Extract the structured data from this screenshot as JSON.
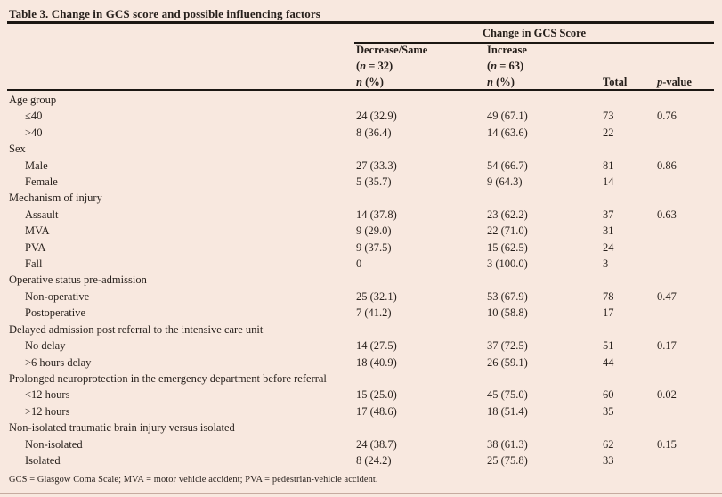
{
  "page": {
    "background_color": "#f8e8df",
    "rule_color": "#1c1713",
    "text_color": "#261f1b",
    "bottom_edge_color": "#c6aba0"
  },
  "table": {
    "title": "Table 3. Change in GCS score and possible influencing factors",
    "header": {
      "spanner": "Change in GCS Score",
      "col_decrease": [
        "Decrease/Same",
        "(*n* = 32)",
        "*n* (%)"
      ],
      "col_increase": [
        "Increase",
        "(*n* = 63)",
        "*n* (%)"
      ],
      "col_total": "Total",
      "col_pvalue": "*p*-value"
    },
    "groups": [
      {
        "label": "Age group",
        "rows": [
          {
            "label": "≤40",
            "decrease": "24 (32.9)",
            "increase": "49 (67.1)",
            "total": "73",
            "p": "0.76"
          },
          {
            "label": ">40",
            "decrease": "8 (36.4)",
            "increase": "14 (63.6)",
            "total": "22",
            "p": ""
          }
        ]
      },
      {
        "label": "Sex",
        "rows": [
          {
            "label": "Male",
            "decrease": "27 (33.3)",
            "increase": "54 (66.7)",
            "total": "81",
            "p": "0.86"
          },
          {
            "label": "Female",
            "decrease": "5 (35.7)",
            "increase": "9 (64.3)",
            "total": "14",
            "p": ""
          }
        ]
      },
      {
        "label": "Mechanism of injury",
        "rows": [
          {
            "label": "Assault",
            "decrease": "14 (37.8)",
            "increase": "23 (62.2)",
            "total": "37",
            "p": "0.63"
          },
          {
            "label": "MVA",
            "decrease": "9 (29.0)",
            "increase": "22 (71.0)",
            "total": "31",
            "p": ""
          },
          {
            "label": "PVA",
            "decrease": "9 (37.5)",
            "increase": "15 (62.5)",
            "total": "24",
            "p": ""
          },
          {
            "label": "Fall",
            "decrease": "0",
            "increase": "3 (100.0)",
            "total": "3",
            "p": ""
          }
        ]
      },
      {
        "label": "Operative status pre-admission",
        "rows": [
          {
            "label": "Non-operative",
            "decrease": "25 (32.1)",
            "increase": "53 (67.9)",
            "total": "78",
            "p": "0.47"
          },
          {
            "label": "Postoperative",
            "decrease": "7 (41.2)",
            "increase": "10 (58.8)",
            "total": "17",
            "p": ""
          }
        ]
      },
      {
        "label": "Delayed admission post referral to the intensive care unit",
        "rows": [
          {
            "label": "No delay",
            "decrease": "14 (27.5)",
            "increase": "37 (72.5)",
            "total": "51",
            "p": "0.17"
          },
          {
            "label": ">6 hours delay",
            "decrease": "18 (40.9)",
            "increase": "26 (59.1)",
            "total": "44",
            "p": ""
          }
        ]
      },
      {
        "label": "Prolonged neuroprotection in the emergency department before referral",
        "rows": [
          {
            "label": "<12 hours",
            "decrease": "15 (25.0)",
            "increase": "45 (75.0)",
            "total": "60",
            "p": "0.02"
          },
          {
            "label": ">12 hours",
            "decrease": "17 (48.6)",
            "increase": "18 (51.4)",
            "total": "35",
            "p": ""
          }
        ]
      },
      {
        "label": "Non-isolated traumatic brain injury versus isolated",
        "rows": [
          {
            "label": "Non-isolated",
            "decrease": "24 (38.7)",
            "increase": "38 (61.3)",
            "total": "62",
            "p": "0.15"
          },
          {
            "label": "Isolated",
            "decrease": "8 (24.2)",
            "increase": "25 (75.8)",
            "total": "33",
            "p": ""
          }
        ]
      }
    ],
    "footnote": "GCS = Glasgow Coma Scale; MVA = motor vehicle accident; PVA = pedestrian-vehicle accident."
  }
}
